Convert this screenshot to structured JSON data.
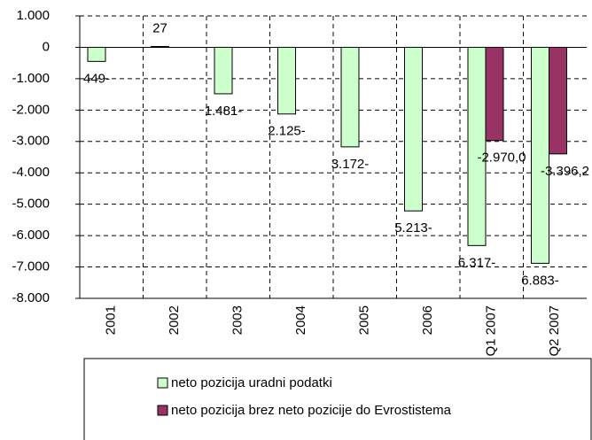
{
  "chart_data": {
    "type": "bar",
    "categories": [
      "2001",
      "2002",
      "2003",
      "2004",
      "2005",
      "2006",
      "Q1 2007",
      "Q2 2007"
    ],
    "series": [
      {
        "name": "neto pozicija uradni podatki",
        "color": "#ccffcc",
        "values": [
          -449,
          27,
          -1481,
          -2125,
          -3172,
          -5213,
          -6317,
          -6883
        ],
        "value_labels": [
          "449-",
          "27",
          "1.481-",
          "2.125-",
          "3.172-",
          "5.213-",
          "6.317-",
          "6.883-"
        ]
      },
      {
        "name": "neto pozicija brez neto pozicije do Evrostistema",
        "color": "#993366",
        "values": [
          null,
          null,
          null,
          null,
          null,
          null,
          -2970.0,
          -3396.2
        ],
        "value_labels": [
          null,
          null,
          null,
          null,
          null,
          null,
          "-2.970,0",
          "-3.396,2"
        ]
      }
    ],
    "ylim": [
      -8000,
      1000
    ],
    "yticks": [
      {
        "value": 1000,
        "label": "1.000"
      },
      0,
      {
        "value": -1000,
        "label": "-1.000"
      },
      {
        "value": -2000,
        "label": "-2.000"
      },
      {
        "value": -3000,
        "label": "-3.000"
      },
      {
        "value": -4000,
        "label": "-4.000"
      },
      {
        "value": -5000,
        "label": "-5.000"
      },
      {
        "value": -6000,
        "label": "-6.000"
      },
      {
        "value": -7000,
        "label": "-7.000"
      },
      {
        "value": -8000,
        "label": "-8.000"
      }
    ],
    "grid": true,
    "legend": "bottom"
  }
}
